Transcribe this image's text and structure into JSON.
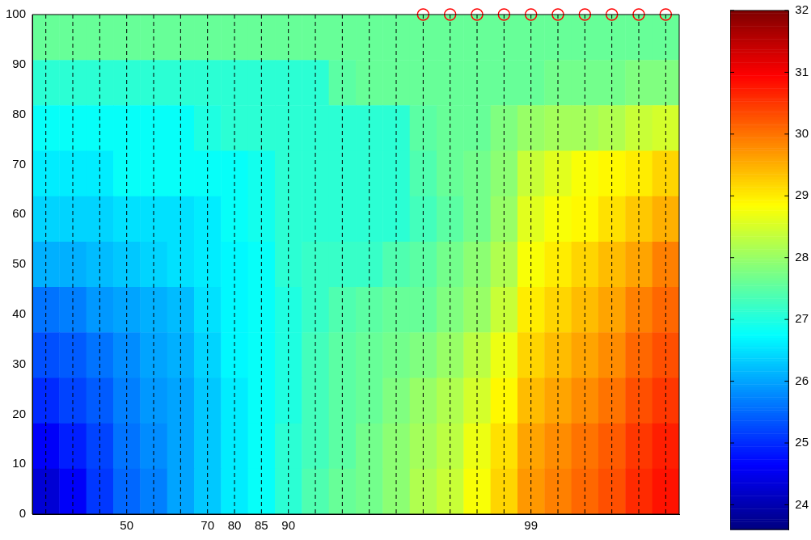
{
  "chart_data": {
    "type": "heatmap",
    "categories": [
      null,
      null,
      null,
      "50",
      null,
      null,
      "70",
      "80",
      "85",
      "90",
      null,
      null,
      null,
      null,
      null,
      null,
      null,
      null,
      "99",
      null,
      null,
      null,
      null,
      null
    ],
    "ylim": [
      0,
      100
    ],
    "yticks": [
      0,
      10,
      20,
      30,
      40,
      50,
      60,
      70,
      80,
      90,
      100
    ],
    "grid": "x",
    "clim": [
      23.6,
      32
    ],
    "cticks": [
      24,
      25,
      26,
      27,
      28,
      29,
      30,
      31,
      32
    ],
    "cells": [
      [
        27.6,
        27.6,
        27.6,
        27.6,
        27.6,
        27.6,
        27.6,
        27.6,
        27.6,
        27.6,
        27.6,
        27.6,
        27.6,
        27.6,
        27.6,
        27.6,
        27.6,
        27.6,
        27.6,
        27.6,
        27.6,
        27.6,
        27.6,
        27.6
      ],
      [
        27.1,
        27.1,
        27.1,
        27.1,
        27.1,
        27.1,
        27.1,
        27.1,
        27.1,
        27.1,
        27.1,
        27.5,
        27.6,
        27.6,
        27.6,
        27.6,
        27.6,
        27.6,
        27.6,
        27.7,
        27.7,
        27.7,
        27.8,
        27.8
      ],
      [
        26.8,
        26.8,
        26.8,
        26.8,
        26.8,
        26.8,
        27.0,
        27.1,
        27.1,
        27.1,
        27.1,
        27.1,
        27.1,
        27.1,
        27.5,
        27.6,
        27.6,
        27.8,
        28.0,
        28.1,
        28.1,
        28.2,
        28.4,
        28.5
      ],
      [
        26.6,
        26.6,
        26.6,
        26.8,
        26.8,
        26.8,
        26.8,
        26.8,
        26.9,
        27.1,
        27.1,
        27.1,
        27.1,
        27.1,
        27.4,
        27.6,
        27.7,
        27.9,
        28.4,
        28.6,
        28.8,
        28.9,
        29.0,
        29.2
      ],
      [
        26.4,
        26.4,
        26.4,
        26.5,
        26.5,
        26.5,
        26.6,
        26.8,
        26.9,
        27.1,
        27.1,
        27.1,
        27.1,
        27.1,
        27.3,
        27.5,
        27.7,
        28.0,
        28.6,
        28.8,
        28.9,
        29.1,
        29.3,
        29.5
      ],
      [
        26.1,
        26.1,
        26.2,
        26.3,
        26.4,
        26.5,
        26.6,
        26.7,
        26.8,
        27.1,
        27.2,
        27.2,
        27.2,
        27.4,
        27.5,
        27.7,
        27.9,
        28.2,
        28.8,
        29.0,
        29.2,
        29.4,
        29.6,
        29.9
      ],
      [
        25.6,
        25.7,
        25.9,
        26.0,
        26.1,
        26.2,
        26.5,
        26.7,
        26.8,
        27.0,
        27.2,
        27.4,
        27.5,
        27.6,
        27.6,
        27.8,
        28.0,
        28.4,
        29.0,
        29.2,
        29.4,
        29.6,
        29.9,
        30.1
      ],
      [
        25.3,
        25.4,
        25.6,
        25.8,
        26.0,
        26.1,
        26.4,
        26.7,
        26.8,
        27.0,
        27.3,
        27.5,
        27.6,
        27.7,
        27.8,
        28.0,
        28.3,
        28.7,
        29.2,
        29.4,
        29.6,
        29.8,
        30.1,
        30.3
      ],
      [
        25.0,
        25.2,
        25.4,
        25.7,
        25.9,
        26.0,
        26.3,
        26.6,
        26.8,
        27.0,
        27.3,
        27.5,
        27.6,
        27.8,
        28.0,
        28.2,
        28.5,
        28.9,
        29.4,
        29.6,
        29.8,
        30.0,
        30.3,
        30.5
      ],
      [
        24.6,
        24.9,
        25.2,
        25.6,
        25.8,
        26.0,
        26.3,
        26.6,
        26.8,
        27.1,
        27.3,
        27.5,
        27.7,
        27.9,
        28.1,
        28.3,
        28.7,
        29.1,
        29.6,
        29.8,
        30.0,
        30.2,
        30.5,
        30.7
      ],
      [
        24.3,
        24.6,
        25.1,
        25.5,
        25.7,
        26.0,
        26.3,
        26.6,
        26.8,
        27.1,
        27.4,
        27.6,
        27.7,
        27.9,
        28.2,
        28.4,
        28.8,
        29.2,
        29.7,
        29.9,
        30.1,
        30.3,
        30.6,
        30.8
      ]
    ],
    "series": [
      {
        "type": "scatter",
        "color": "#ff0000",
        "marker": "circle",
        "values": [
          null,
          null,
          null,
          null,
          null,
          null,
          null,
          null,
          null,
          null,
          null,
          null,
          null,
          null,
          100,
          100,
          100,
          100,
          100,
          100,
          100,
          100,
          100,
          100
        ]
      }
    ]
  }
}
